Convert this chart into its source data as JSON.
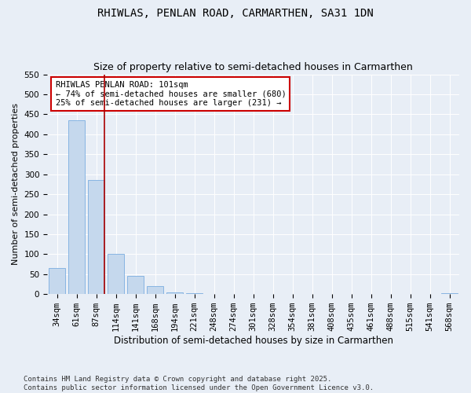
{
  "title": "RHIWLAS, PENLAN ROAD, CARMARTHEN, SA31 1DN",
  "subtitle": "Size of property relative to semi-detached houses in Carmarthen",
  "xlabel": "Distribution of semi-detached houses by size in Carmarthen",
  "ylabel": "Number of semi-detached properties",
  "categories": [
    "34sqm",
    "61sqm",
    "87sqm",
    "114sqm",
    "141sqm",
    "168sqm",
    "194sqm",
    "221sqm",
    "248sqm",
    "274sqm",
    "301sqm",
    "328sqm",
    "354sqm",
    "381sqm",
    "408sqm",
    "435sqm",
    "461sqm",
    "488sqm",
    "515sqm",
    "541sqm",
    "568sqm"
  ],
  "values": [
    65,
    435,
    285,
    100,
    45,
    20,
    5,
    2,
    0,
    0,
    0,
    0,
    0,
    0,
    0,
    0,
    0,
    0,
    0,
    0,
    2
  ],
  "bar_color": "#c5d8ed",
  "bar_edgecolor": "#7aade0",
  "vline_color": "#aa0000",
  "annotation_text": "RHIWLAS PENLAN ROAD: 101sqm\n← 74% of semi-detached houses are smaller (680)\n25% of semi-detached houses are larger (231) →",
  "annotation_box_edgecolor": "#cc0000",
  "annotation_box_facecolor": "#ffffff",
  "ylim": [
    0,
    550
  ],
  "yticks": [
    0,
    50,
    100,
    150,
    200,
    250,
    300,
    350,
    400,
    450,
    500,
    550
  ],
  "background_color": "#e8eef6",
  "plot_background": "#e8eef6",
  "footer": "Contains HM Land Registry data © Crown copyright and database right 2025.\nContains public sector information licensed under the Open Government Licence v3.0.",
  "title_fontsize": 10,
  "subtitle_fontsize": 9,
  "xlabel_fontsize": 8.5,
  "ylabel_fontsize": 8,
  "tick_fontsize": 7.5,
  "footer_fontsize": 6.5,
  "vline_bin_index": 2
}
